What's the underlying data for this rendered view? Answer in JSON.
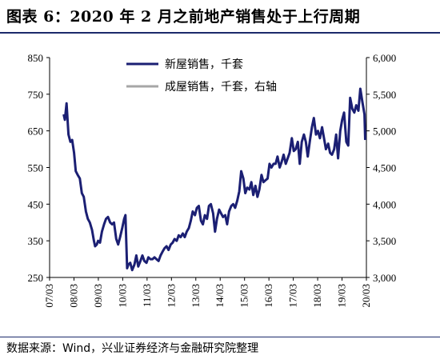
{
  "figure": {
    "title": "图表 6：2020 年 2 月之前地产销售处于上行周期",
    "source": "数据来源：Wind，兴业证券经济与金融研究院整理"
  },
  "chart_data": {
    "type": "line",
    "x_tick_labels": [
      "07/03",
      "08/03",
      "09/03",
      "10/03",
      "11/03",
      "12/03",
      "13/03",
      "14/03",
      "15/03",
      "16/03",
      "17/03",
      "18/03",
      "19/03",
      "20/03"
    ],
    "left_axis": {
      "ticks": [
        250,
        350,
        450,
        550,
        650,
        750,
        850
      ],
      "ylim": [
        250,
        850
      ]
    },
    "right_axis": {
      "ticks": [
        "3,000",
        "3,500",
        "4,000",
        "4,500",
        "5,000",
        "5,500",
        "6,000"
      ],
      "ylim": [
        3000,
        6000
      ]
    },
    "legend_position": "top-center",
    "series": [
      {
        "name": "新屋销售，千套",
        "axis": "left",
        "color": "#1b1f73",
        "points": [
          [
            2007.75,
            695
          ],
          [
            2007.8,
            680
          ],
          [
            2007.87,
            725
          ],
          [
            2007.95,
            640
          ],
          [
            2008.03,
            620
          ],
          [
            2008.1,
            625
          ],
          [
            2008.18,
            590
          ],
          [
            2008.25,
            540
          ],
          [
            2008.33,
            530
          ],
          [
            2008.42,
            520
          ],
          [
            2008.5,
            480
          ],
          [
            2008.58,
            470
          ],
          [
            2008.67,
            430
          ],
          [
            2008.75,
            410
          ],
          [
            2008.83,
            400
          ],
          [
            2008.92,
            380
          ],
          [
            2009.0,
            350
          ],
          [
            2009.05,
            335
          ],
          [
            2009.12,
            340
          ],
          [
            2009.17,
            350
          ],
          [
            2009.25,
            345
          ],
          [
            2009.33,
            375
          ],
          [
            2009.42,
            395
          ],
          [
            2009.5,
            410
          ],
          [
            2009.58,
            415
          ],
          [
            2009.67,
            400
          ],
          [
            2009.75,
            395
          ],
          [
            2009.83,
            400
          ],
          [
            2009.92,
            355
          ],
          [
            2010.0,
            340
          ],
          [
            2010.08,
            360
          ],
          [
            2010.17,
            385
          ],
          [
            2010.25,
            410
          ],
          [
            2010.3,
            420
          ],
          [
            2010.37,
            275
          ],
          [
            2010.42,
            285
          ],
          [
            2010.5,
            290
          ],
          [
            2010.58,
            270
          ],
          [
            2010.67,
            285
          ],
          [
            2010.75,
            310
          ],
          [
            2010.83,
            280
          ],
          [
            2010.92,
            295
          ],
          [
            2011.0,
            310
          ],
          [
            2011.08,
            295
          ],
          [
            2011.17,
            290
          ],
          [
            2011.25,
            305
          ],
          [
            2011.33,
            300
          ],
          [
            2011.42,
            300
          ],
          [
            2011.5,
            305
          ],
          [
            2011.58,
            300
          ],
          [
            2011.67,
            295
          ],
          [
            2011.75,
            310
          ],
          [
            2011.83,
            320
          ],
          [
            2011.92,
            330
          ],
          [
            2012.0,
            335
          ],
          [
            2012.08,
            325
          ],
          [
            2012.17,
            340
          ],
          [
            2012.25,
            345
          ],
          [
            2012.33,
            355
          ],
          [
            2012.42,
            350
          ],
          [
            2012.5,
            365
          ],
          [
            2012.58,
            360
          ],
          [
            2012.67,
            370
          ],
          [
            2012.75,
            360
          ],
          [
            2012.83,
            375
          ],
          [
            2012.92,
            385
          ],
          [
            2013.0,
            405
          ],
          [
            2013.08,
            430
          ],
          [
            2013.17,
            420
          ],
          [
            2013.25,
            440
          ],
          [
            2013.33,
            445
          ],
          [
            2013.42,
            405
          ],
          [
            2013.5,
            395
          ],
          [
            2013.58,
            420
          ],
          [
            2013.67,
            410
          ],
          [
            2013.75,
            445
          ],
          [
            2013.83,
            450
          ],
          [
            2013.92,
            425
          ],
          [
            2014.0,
            375
          ],
          [
            2014.08,
            410
          ],
          [
            2014.17,
            435
          ],
          [
            2014.25,
            425
          ],
          [
            2014.33,
            415
          ],
          [
            2014.42,
            420
          ],
          [
            2014.5,
            395
          ],
          [
            2014.58,
            430
          ],
          [
            2014.67,
            445
          ],
          [
            2014.75,
            450
          ],
          [
            2014.83,
            440
          ],
          [
            2014.92,
            460
          ],
          [
            2015.0,
            485
          ],
          [
            2015.08,
            540
          ],
          [
            2015.17,
            520
          ],
          [
            2015.25,
            480
          ],
          [
            2015.33,
            495
          ],
          [
            2015.42,
            490
          ],
          [
            2015.5,
            510
          ],
          [
            2015.58,
            475
          ],
          [
            2015.67,
            500
          ],
          [
            2015.75,
            470
          ],
          [
            2015.83,
            490
          ],
          [
            2015.92,
            530
          ],
          [
            2016.0,
            510
          ],
          [
            2016.08,
            515
          ],
          [
            2016.17,
            520
          ],
          [
            2016.25,
            560
          ],
          [
            2016.33,
            550
          ],
          [
            2016.42,
            560
          ],
          [
            2016.5,
            560
          ],
          [
            2016.58,
            580
          ],
          [
            2016.67,
            550
          ],
          [
            2016.75,
            565
          ],
          [
            2016.83,
            585
          ],
          [
            2016.92,
            560
          ],
          [
            2017.0,
            575
          ],
          [
            2017.08,
            590
          ],
          [
            2017.17,
            630
          ],
          [
            2017.25,
            595
          ],
          [
            2017.33,
            600
          ],
          [
            2017.42,
            620
          ],
          [
            2017.5,
            560
          ],
          [
            2017.58,
            620
          ],
          [
            2017.67,
            640
          ],
          [
            2017.75,
            620
          ],
          [
            2017.83,
            580
          ],
          [
            2017.92,
            625
          ],
          [
            2018.0,
            660
          ],
          [
            2018.08,
            685
          ],
          [
            2018.17,
            640
          ],
          [
            2018.25,
            650
          ],
          [
            2018.33,
            630
          ],
          [
            2018.42,
            660
          ],
          [
            2018.5,
            630
          ],
          [
            2018.58,
            600
          ],
          [
            2018.67,
            615
          ],
          [
            2018.75,
            590
          ],
          [
            2018.83,
            585
          ],
          [
            2018.92,
            600
          ],
          [
            2019.0,
            640
          ],
          [
            2019.08,
            575
          ],
          [
            2019.17,
            650
          ],
          [
            2019.25,
            680
          ],
          [
            2019.33,
            700
          ],
          [
            2019.42,
            620
          ],
          [
            2019.5,
            610
          ],
          [
            2019.58,
            740
          ],
          [
            2019.67,
            710
          ],
          [
            2019.75,
            700
          ],
          [
            2019.83,
            720
          ],
          [
            2019.92,
            705
          ],
          [
            2020.0,
            765
          ],
          [
            2020.08,
            730
          ],
          [
            2020.17,
            695
          ],
          [
            2020.2,
            625
          ]
        ]
      },
      {
        "name": "成屋销售，千套，右轴",
        "axis": "right",
        "color": "#a6a6a6",
        "points": []
      }
    ]
  }
}
